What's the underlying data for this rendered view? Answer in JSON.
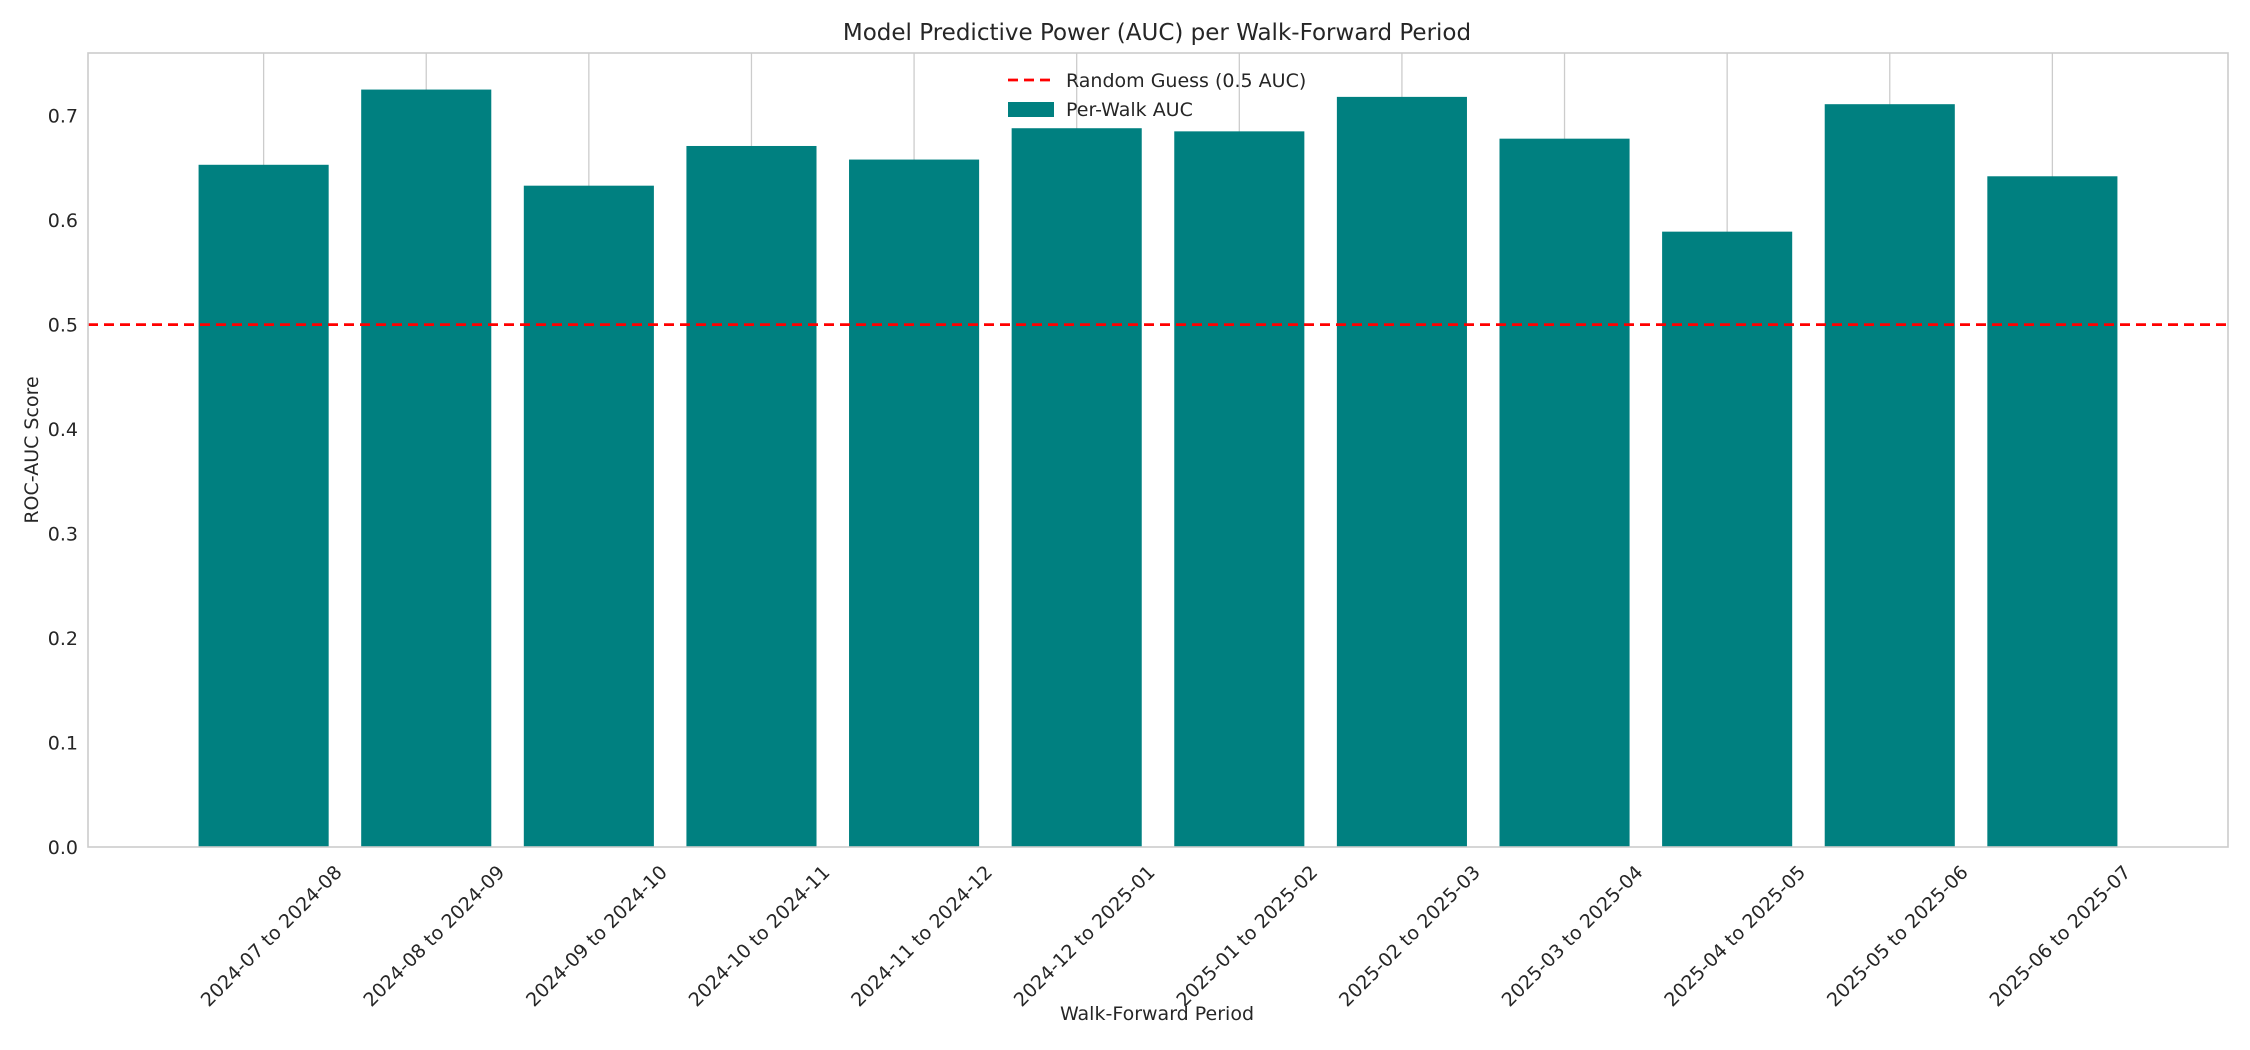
{
  "chart_data": {
    "type": "bar",
    "title": "Model Predictive Power (AUC) per Walk-Forward Period",
    "xlabel": "Walk-Forward Period",
    "ylabel": "ROC-AUC Score",
    "categories": [
      "2024-07 to 2024-08",
      "2024-08 to 2024-09",
      "2024-09 to 2024-10",
      "2024-10 to 2024-11",
      "2024-11 to 2024-12",
      "2024-12 to 2025-01",
      "2025-01 to 2025-02",
      "2025-02 to 2025-03",
      "2025-03 to 2025-04",
      "2025-04 to 2025-05",
      "2025-05 to 2025-06",
      "2025-06 to 2025-07"
    ],
    "series": [
      {
        "name": "Per-Walk AUC",
        "color": "#008080",
        "values": [
          0.653,
          0.725,
          0.633,
          0.671,
          0.658,
          0.688,
          0.685,
          0.718,
          0.678,
          0.589,
          0.711,
          0.642
        ]
      }
    ],
    "reference_line": {
      "name": "Random Guess (0.5 AUC)",
      "value": 0.5,
      "color": "#ff0000",
      "style": "dashed"
    },
    "ylim": [
      0,
      0.76
    ],
    "yticks": [
      0.0,
      0.1,
      0.2,
      0.3,
      0.4,
      0.5,
      0.6,
      0.7
    ],
    "grid": "vertical",
    "legend_position": "upper-center",
    "x_tick_rotation": 45
  }
}
